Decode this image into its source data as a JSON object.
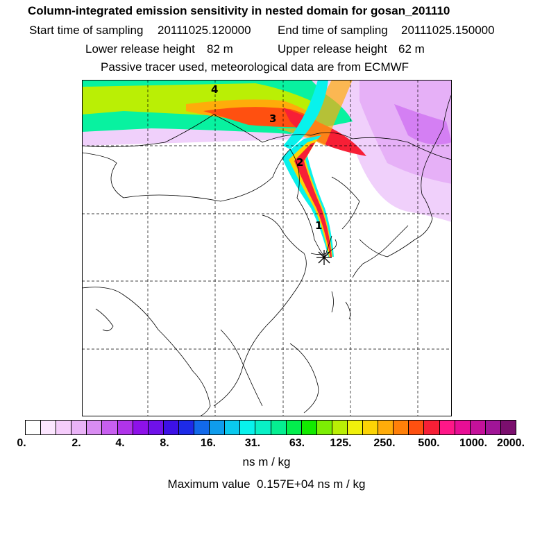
{
  "header": {
    "title": "Column-integrated emission sensitivity in nested domain for gosan_201110",
    "start_label": "Start time of sampling",
    "start_value": "20111025.120000",
    "end_label": "End time of sampling",
    "end_value": "20111025.150000",
    "lower_label": "Lower release height",
    "lower_value": "82 m",
    "upper_label": "Upper release height",
    "upper_value": "62 m",
    "tracer_note": "Passive tracer used, meteorological data are from ECMWF"
  },
  "map": {
    "trajectory_labels": [
      "1",
      "2",
      "3",
      "4"
    ],
    "release_marker_icon": "asterisk-star-icon"
  },
  "colorbar": {
    "colors": [
      "#ffffff",
      "#fce6ff",
      "#f5ccfb",
      "#eab3f7",
      "#d98cf2",
      "#c85ff0",
      "#b034ea",
      "#8e11e9",
      "#6f11ea",
      "#3d10e6",
      "#1d2ae8",
      "#1269ea",
      "#0f9cec",
      "#0ac9ee",
      "#08f2ec",
      "#09f0c6",
      "#05ee91",
      "#02ee4d",
      "#13ea00",
      "#7cee04",
      "#baef05",
      "#f0f00b",
      "#fcd405",
      "#ffac0a",
      "#ff8009",
      "#fe5010",
      "#f71f36",
      "#ff1788",
      "#e80e95",
      "#c4119a",
      "#a11597",
      "#7b0f6e"
    ],
    "tick_labels": [
      "0.",
      "2.",
      "4.",
      "8.",
      "16.",
      "31.",
      "63.",
      "125.",
      "250.",
      "500.",
      "1000.",
      "2000."
    ],
    "unit": "ns m / kg"
  },
  "footer": {
    "max_label": "Maximum value",
    "max_value": "0.157E+04",
    "max_unit": "ns m / kg"
  }
}
